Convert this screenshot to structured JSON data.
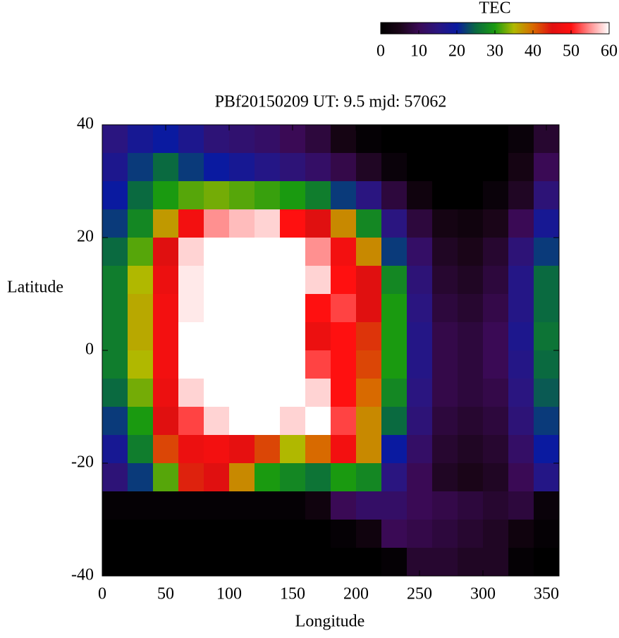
{
  "chart_data": {
    "type": "heatmap",
    "title": "PBf20150209  UT: 9.5  mjd: 57062",
    "x_label": "Longitude",
    "y_label": "Latitude",
    "colorbar_title": "TEC",
    "x": [
      10,
      30,
      50,
      70,
      90,
      110,
      130,
      150,
      170,
      190,
      210,
      230,
      250,
      270,
      290,
      310,
      330,
      350
    ],
    "y": [
      37.5,
      32.5,
      27.5,
      22.5,
      17.5,
      12.5,
      7.5,
      2.5,
      -2.5,
      -7.5,
      -12.5,
      -17.5,
      -22.5,
      -27.5,
      -32.5,
      -37.5
    ],
    "z": [
      [
        15,
        18,
        20,
        17,
        14,
        13,
        12,
        10,
        8,
        4,
        1,
        0,
        0,
        0,
        0,
        0,
        2,
        7
      ],
      [
        17,
        22,
        25,
        22,
        20,
        18,
        16,
        14,
        12,
        9,
        6,
        2,
        0,
        0,
        0,
        0,
        4,
        10
      ],
      [
        20,
        25,
        30,
        32,
        33,
        32,
        31,
        30,
        27,
        22,
        15,
        8,
        3,
        0,
        0,
        2,
        6,
        14
      ],
      [
        22,
        28,
        37,
        48,
        55,
        57,
        58,
        50,
        45,
        38,
        28,
        15,
        8,
        4,
        3,
        5,
        10,
        18
      ],
      [
        25,
        32,
        45,
        58,
        60,
        60,
        60,
        60,
        55,
        48,
        38,
        22,
        12,
        6,
        5,
        7,
        14,
        22
      ],
      [
        27,
        35,
        47,
        59,
        60,
        60,
        60,
        60,
        58,
        50,
        45,
        28,
        14,
        7,
        6,
        8,
        16,
        25
      ],
      [
        27,
        36,
        48,
        59,
        60,
        60,
        60,
        60,
        50,
        52,
        45,
        30,
        15,
        8,
        7,
        9,
        16,
        25
      ],
      [
        27,
        36,
        48,
        60,
        60,
        60,
        60,
        60,
        47,
        50,
        43,
        30,
        16,
        9,
        8,
        10,
        17,
        26
      ],
      [
        27,
        35,
        48,
        60,
        60,
        60,
        60,
        60,
        52,
        50,
        42,
        30,
        16,
        9,
        8,
        10,
        16,
        25
      ],
      [
        25,
        33,
        47,
        58,
        60,
        60,
        60,
        60,
        58,
        50,
        40,
        28,
        15,
        9,
        8,
        9,
        15,
        24
      ],
      [
        22,
        30,
        45,
        52,
        58,
        60,
        60,
        58,
        60,
        52,
        38,
        25,
        14,
        8,
        7,
        8,
        14,
        22
      ],
      [
        18,
        27,
        42,
        47,
        48,
        46,
        42,
        35,
        40,
        48,
        38,
        20,
        12,
        7,
        6,
        7,
        12,
        20
      ],
      [
        14,
        22,
        32,
        44,
        45,
        38,
        30,
        28,
        26,
        30,
        28,
        15,
        10,
        6,
        5,
        6,
        10,
        16
      ],
      [
        1,
        1,
        1,
        1,
        1,
        1,
        1,
        1,
        3,
        10,
        12,
        12,
        10,
        9,
        8,
        7,
        8,
        2
      ],
      [
        0,
        0,
        0,
        0,
        0,
        0,
        0,
        0,
        0,
        1,
        3,
        10,
        9,
        8,
        7,
        6,
        3,
        1
      ],
      [
        0,
        0,
        0,
        0,
        0,
        0,
        0,
        0,
        0,
        0,
        0,
        1,
        7,
        7,
        6,
        6,
        1,
        0
      ]
    ],
    "xlim": [
      0,
      360
    ],
    "xticks": [
      0,
      50,
      100,
      150,
      200,
      250,
      300,
      350
    ],
    "ylim": [
      -40,
      40
    ],
    "yticks": [
      -40,
      -20,
      0,
      20,
      40
    ],
    "clim": [
      0,
      60
    ],
    "cticks": [
      0,
      10,
      20,
      30,
      40,
      50,
      60
    ],
    "colormap": [
      "#000000",
      "#1a0518",
      "#3a0a55",
      "#2a1580",
      "#0a1aa0",
      "#0a6a40",
      "#1a9a10",
      "#b0b800",
      "#d86a00",
      "#e01010",
      "#ff1010",
      "#ff9090",
      "#ffffff"
    ]
  }
}
